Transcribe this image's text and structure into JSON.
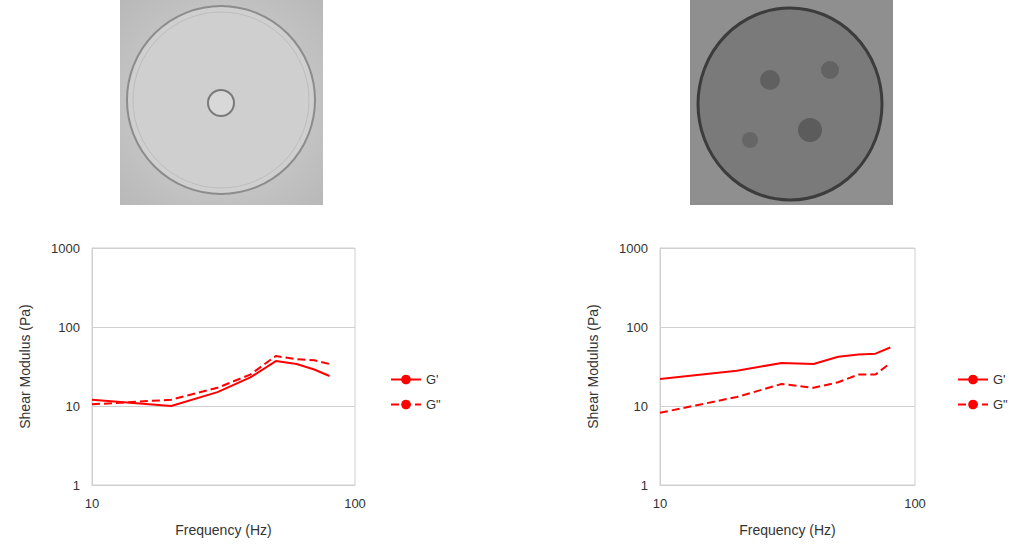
{
  "chart_data": [
    {
      "type": "line",
      "x": [
        10,
        20,
        30,
        40,
        50,
        60,
        70,
        80
      ],
      "xlabel": "Frequency (Hz)",
      "ylabel": "Shear Modulus (Pa)",
      "xlim": [
        10,
        100
      ],
      "ylim": [
        1,
        1000
      ],
      "xticks": [
        10,
        100
      ],
      "yticks": [
        1,
        10,
        100,
        1000
      ],
      "log": true,
      "grid": true,
      "legend": "right",
      "series": [
        {
          "name": "G'",
          "color": "#ff0000",
          "line_style": "solid",
          "values": [
            12,
            10,
            15,
            23,
            37,
            34,
            29,
            24
          ]
        },
        {
          "name": "G\"",
          "color": "#ff0000",
          "line_style": "dashed",
          "values": [
            10.5,
            12,
            17,
            25,
            43,
            39,
            38,
            34
          ]
        }
      ]
    },
    {
      "type": "line",
      "x": [
        10,
        20,
        30,
        40,
        50,
        60,
        70,
        80
      ],
      "xlabel": "Frequency (Hz)",
      "ylabel": "Shear Modulus (Pa)",
      "xlim": [
        10,
        100
      ],
      "ylim": [
        1,
        1000
      ],
      "xticks": [
        10,
        100
      ],
      "yticks": [
        1,
        10,
        100,
        1000
      ],
      "log": true,
      "grid": true,
      "legend": "right",
      "series": [
        {
          "name": "G'",
          "color": "#ff0000",
          "line_style": "solid",
          "values": [
            22,
            28,
            35,
            34,
            42,
            45,
            46,
            55
          ]
        },
        {
          "name": "G\"",
          "color": "#ff0000",
          "line_style": "dashed",
          "values": [
            8.2,
            13,
            19,
            17,
            20,
            25,
            25,
            35
          ]
        }
      ]
    }
  ]
}
